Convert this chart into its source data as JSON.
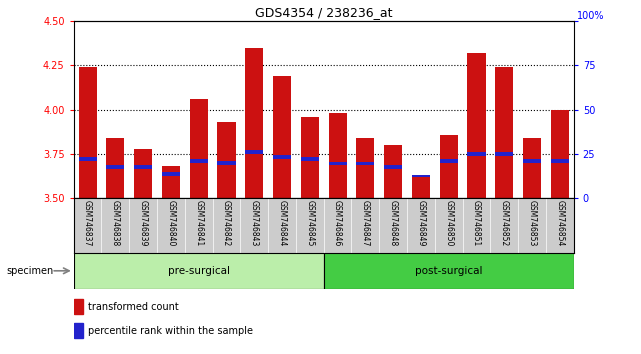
{
  "title": "GDS4354 / 238236_at",
  "samples": [
    "GSM746837",
    "GSM746838",
    "GSM746839",
    "GSM746840",
    "GSM746841",
    "GSM746842",
    "GSM746843",
    "GSM746844",
    "GSM746845",
    "GSM746846",
    "GSM746847",
    "GSM746848",
    "GSM746849",
    "GSM746850",
    "GSM746851",
    "GSM746852",
    "GSM746853",
    "GSM746854"
  ],
  "red_values": [
    4.24,
    3.84,
    3.78,
    3.68,
    4.06,
    3.93,
    4.35,
    4.19,
    3.96,
    3.98,
    3.84,
    3.8,
    3.62,
    3.86,
    4.32,
    4.24,
    3.84,
    4.0
  ],
  "blue_positions": [
    3.71,
    3.665,
    3.665,
    3.625,
    3.7,
    3.69,
    3.75,
    3.72,
    3.71,
    3.685,
    3.685,
    3.665,
    3.618,
    3.7,
    3.74,
    3.74,
    3.7,
    3.7
  ],
  "blue_heights": [
    0.022,
    0.022,
    0.022,
    0.022,
    0.022,
    0.022,
    0.022,
    0.022,
    0.022,
    0.022,
    0.022,
    0.022,
    0.012,
    0.022,
    0.022,
    0.022,
    0.022,
    0.022
  ],
  "y_min": 3.5,
  "y_max": 4.5,
  "y_ticks_left": [
    3.5,
    3.75,
    4.0,
    4.25,
    4.5
  ],
  "y_ticks_right": [
    0,
    25,
    50,
    75,
    100
  ],
  "right_axis_label": "100%",
  "bar_color": "#cc1111",
  "blue_color": "#2222cc",
  "pre_surgical_count": 9,
  "post_surgical_count": 9,
  "pre_surgical_label": "pre-surgical",
  "post_surgical_label": "post-surgical",
  "specimen_label": "specimen",
  "legend_red": "transformed count",
  "legend_blue": "percentile rank within the sample",
  "group_box_color_pre": "#bbeeaa",
  "group_box_color_post": "#44cc44",
  "tick_area_color": "#cccccc",
  "dotted_lines": [
    3.75,
    4.0,
    4.25
  ]
}
